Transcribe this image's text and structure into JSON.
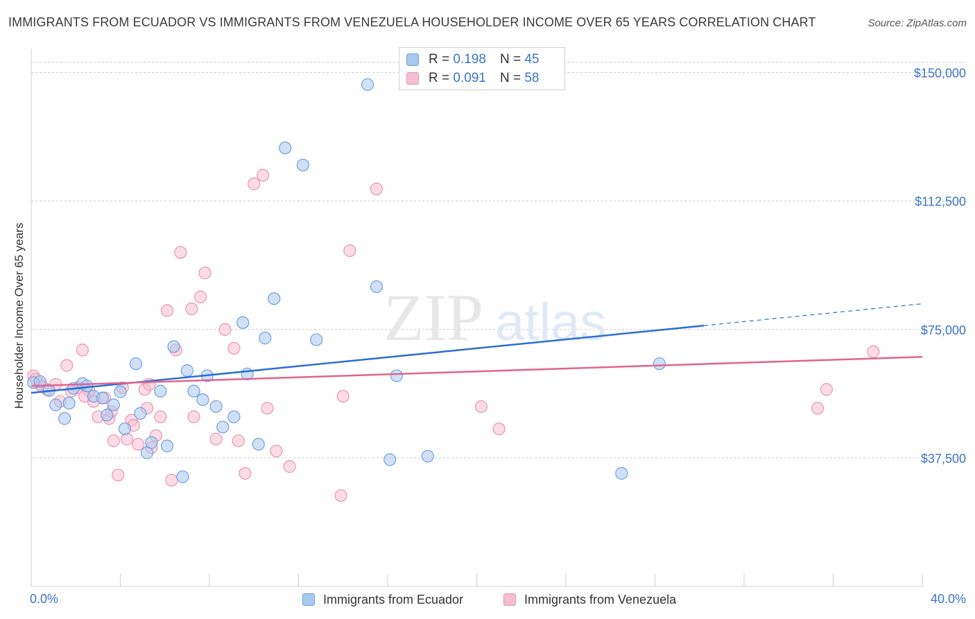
{
  "title": "IMMIGRANTS FROM ECUADOR VS IMMIGRANTS FROM VENEZUELA HOUSEHOLDER INCOME OVER 65 YEARS CORRELATION CHART",
  "source": "Source: ZipAtlas.com",
  "watermark": {
    "zip": "ZIP",
    "atlas": "atlas"
  },
  "legend": {
    "r_label": "R =",
    "n_label": "N =",
    "rows": [
      {
        "r": "0.198",
        "n": "45"
      },
      {
        "r": "0.091",
        "n": "58"
      }
    ]
  },
  "colors": {
    "ecuador_fill": "#a9c8f0",
    "ecuador_stroke": "#6f9fe0",
    "ecuador_line": "#2a6fd1",
    "venezuela_fill": "#f7bdd0",
    "venezuela_stroke": "#e995b1",
    "venezuela_line": "#e0648f",
    "tick_label": "#3b74c9",
    "grid": "#cccccc"
  },
  "chart_data": {
    "type": "scatter",
    "title": "IMMIGRANTS FROM ECUADOR VS IMMIGRANTS FROM VENEZUELA HOUSEHOLDER INCOME OVER 65 YEARS CORRELATION CHART",
    "xlabel": "",
    "ylabel": "Householder Income Over 65 years",
    "xlim": [
      0,
      40
    ],
    "ylim": [
      0,
      157000
    ],
    "x_tick_labels": [
      "0.0%",
      "40.0%"
    ],
    "y_ticks": [
      37500,
      75000,
      112500,
      150000
    ],
    "y_tick_labels": [
      "$37,500",
      "$75,000",
      "$112,500",
      "$150,000"
    ],
    "grid": true,
    "legend_position": "top-center",
    "series": [
      {
        "name": "Immigrants from Ecuador",
        "trend": {
          "x_start": 0,
          "x_end": 40,
          "y_start": 56500,
          "y_end": 82500,
          "solid_until_x": 30.2
        },
        "points": [
          [
            0.1,
            59500
          ],
          [
            0.4,
            59800
          ],
          [
            0.8,
            57200
          ],
          [
            1.1,
            53000
          ],
          [
            1.5,
            49000
          ],
          [
            1.7,
            53500
          ],
          [
            1.9,
            57800
          ],
          [
            2.3,
            59200
          ],
          [
            2.5,
            58500
          ],
          [
            2.8,
            55500
          ],
          [
            3.2,
            55000
          ],
          [
            3.4,
            50000
          ],
          [
            3.7,
            53000
          ],
          [
            4.0,
            56800
          ],
          [
            4.2,
            46000
          ],
          [
            4.7,
            65000
          ],
          [
            4.9,
            50500
          ],
          [
            5.2,
            39000
          ],
          [
            5.4,
            42000
          ],
          [
            5.8,
            57000
          ],
          [
            6.1,
            41000
          ],
          [
            6.4,
            70000
          ],
          [
            6.8,
            32000
          ],
          [
            7.0,
            63000
          ],
          [
            7.3,
            57000
          ],
          [
            7.7,
            54500
          ],
          [
            7.9,
            61500
          ],
          [
            8.3,
            52500
          ],
          [
            8.6,
            46500
          ],
          [
            9.1,
            49500
          ],
          [
            9.5,
            77000
          ],
          [
            9.7,
            62000
          ],
          [
            10.2,
            41500
          ],
          [
            10.5,
            72500
          ],
          [
            10.9,
            84000
          ],
          [
            11.4,
            128000
          ],
          [
            12.2,
            123000
          ],
          [
            12.8,
            72000
          ],
          [
            15.1,
            146500
          ],
          [
            15.5,
            87500
          ],
          [
            16.1,
            37000
          ],
          [
            16.4,
            61500
          ],
          [
            17.8,
            38000
          ],
          [
            26.5,
            33000
          ],
          [
            28.2,
            65000
          ]
        ]
      },
      {
        "name": "Immigrants from Venezuela",
        "trend": {
          "x_start": 0,
          "x_end": 40,
          "y_start": 58500,
          "y_end": 67000
        },
        "points": [
          [
            0.1,
            61500
          ],
          [
            0.4,
            59000
          ],
          [
            0.7,
            57500
          ],
          [
            1.1,
            59000
          ],
          [
            1.3,
            54000
          ],
          [
            1.6,
            64500
          ],
          [
            2.1,
            58000
          ],
          [
            2.3,
            69000
          ],
          [
            2.6,
            57000
          ],
          [
            2.8,
            54000
          ],
          [
            3.0,
            49500
          ],
          [
            3.3,
            55000
          ],
          [
            3.5,
            49000
          ],
          [
            3.7,
            42500
          ],
          [
            3.9,
            32500
          ],
          [
            4.1,
            58000
          ],
          [
            4.3,
            43000
          ],
          [
            4.5,
            48500
          ],
          [
            4.6,
            47000
          ],
          [
            4.8,
            41500
          ],
          [
            5.1,
            57500
          ],
          [
            5.2,
            52000
          ],
          [
            5.3,
            59000
          ],
          [
            5.4,
            40500
          ],
          [
            5.6,
            44000
          ],
          [
            5.8,
            49500
          ],
          [
            6.1,
            80500
          ],
          [
            6.3,
            31000
          ],
          [
            6.5,
            69000
          ],
          [
            6.7,
            97500
          ],
          [
            7.2,
            81000
          ],
          [
            7.3,
            49500
          ],
          [
            7.6,
            84500
          ],
          [
            7.8,
            91500
          ],
          [
            8.3,
            43000
          ],
          [
            8.7,
            75000
          ],
          [
            9.1,
            69500
          ],
          [
            9.3,
            42500
          ],
          [
            9.6,
            33000
          ],
          [
            10.0,
            117500
          ],
          [
            10.4,
            120000
          ],
          [
            10.6,
            52000
          ],
          [
            11.0,
            39500
          ],
          [
            11.6,
            35000
          ],
          [
            13.9,
            26500
          ],
          [
            14.0,
            55500
          ],
          [
            14.3,
            98000
          ],
          [
            15.5,
            116000
          ],
          [
            20.2,
            52500
          ],
          [
            21.0,
            46000
          ],
          [
            35.3,
            52000
          ],
          [
            35.7,
            57500
          ],
          [
            37.8,
            68500
          ],
          [
            0.2,
            60500
          ],
          [
            0.5,
            58300
          ],
          [
            2.4,
            55500
          ],
          [
            1.8,
            57000
          ],
          [
            3.6,
            51000
          ]
        ]
      }
    ]
  },
  "axis": {
    "y_title": "Householder Income Over 65 years"
  }
}
